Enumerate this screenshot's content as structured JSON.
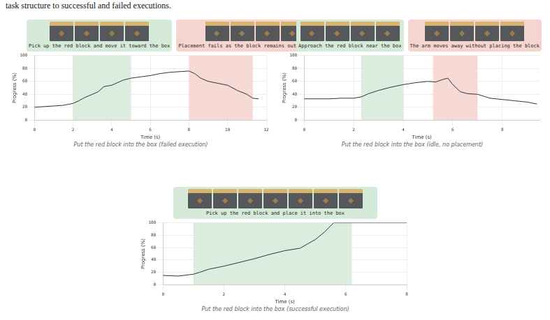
{
  "text": "task structure to successful and failed executions.",
  "chart_data": [
    {
      "type": "line",
      "title": "Put the red block into the box (failed execution)",
      "x_label": "Time (s)",
      "y_label": "Progress (%)",
      "x": [
        0,
        0.5,
        1,
        1.5,
        2,
        2.3,
        2.6,
        3,
        3.3,
        3.6,
        4,
        4.3,
        4.6,
        5,
        5.5,
        6,
        6.5,
        7,
        7.5,
        8,
        8.3,
        8.6,
        9,
        9.5,
        10,
        10.5,
        11,
        11.3,
        11.6
      ],
      "values": [
        20,
        21,
        22,
        23,
        26,
        30,
        35,
        40,
        44,
        52,
        54,
        58,
        62,
        65,
        67,
        69,
        72,
        74,
        75,
        76,
        72,
        65,
        60,
        57,
        54,
        46,
        40,
        34,
        33
      ],
      "color": "#333333",
      "annotations": [
        {
          "text": "Pick up the red block and move it toward the box",
          "x_start": 2,
          "x_end": 5,
          "color": "#d6eada"
        },
        {
          "text": "Placement fails as the block remains outside the box",
          "x_start": 8,
          "x_end": 11.3,
          "color": "#f6d4cf"
        }
      ],
      "xlim": [
        0,
        12
      ],
      "xticks": [
        0,
        2,
        4,
        6,
        8,
        10,
        12
      ],
      "ylim": [
        0,
        100
      ],
      "yticks": [
        0,
        20,
        40,
        60,
        80,
        100
      ],
      "grid": true
    },
    {
      "type": "line",
      "title": "Put the red block into the box (idle, no placement)",
      "x_label": "Time (s)",
      "y_label": "Progress (%)",
      "x": [
        0,
        0.5,
        1,
        1.5,
        2,
        2.3,
        2.6,
        3,
        3.5,
        4,
        4.5,
        5,
        5.3,
        5.6,
        5.8,
        6,
        6.3,
        6.6,
        7,
        7.5,
        8,
        8.5,
        9,
        9.4
      ],
      "values": [
        33,
        33,
        33,
        34,
        34,
        36,
        41,
        46,
        51,
        55,
        58,
        60,
        59,
        63,
        65,
        55,
        44,
        41,
        40,
        34,
        32,
        30,
        28,
        25
      ],
      "color": "#333333",
      "annotations": [
        {
          "text": "Approach the red block near the box",
          "x_start": 2.3,
          "x_end": 4,
          "color": "#d6eada"
        },
        {
          "text": "The arm moves away without placing the block",
          "x_start": 5.2,
          "x_end": 7,
          "color": "#f6d4cf"
        }
      ],
      "xlim": [
        0,
        9.5
      ],
      "xticks": [
        0,
        2,
        4,
        6,
        8
      ],
      "ylim": [
        0,
        100
      ],
      "yticks": [
        0,
        20,
        40,
        60,
        80,
        100
      ],
      "grid": true
    },
    {
      "type": "line",
      "title": "Put the red block into the box (successful execution)",
      "x_label": "Time (s)",
      "y_label": "Progress (%)",
      "x": [
        0,
        0.5,
        1,
        1.2,
        1.5,
        2,
        2.5,
        3,
        3.5,
        4,
        4.5,
        5,
        5.3,
        5.6,
        6,
        6.5,
        7,
        7.5,
        8
      ],
      "values": [
        15,
        14,
        17,
        20,
        25,
        30,
        36,
        42,
        49,
        55,
        59,
        73,
        85,
        100,
        100,
        100,
        100,
        100,
        100
      ],
      "color": "#333333",
      "annotations": [
        {
          "text": "Pick up the red block and place it into the box",
          "x_start": 1,
          "x_end": 6.2,
          "color": "#d6eada"
        }
      ],
      "xlim": [
        0,
        8
      ],
      "xticks": [
        0,
        2,
        4,
        6,
        8
      ],
      "ylim": [
        0,
        100
      ],
      "yticks": [
        0,
        20,
        40,
        60,
        80,
        100
      ],
      "grid": true
    }
  ]
}
